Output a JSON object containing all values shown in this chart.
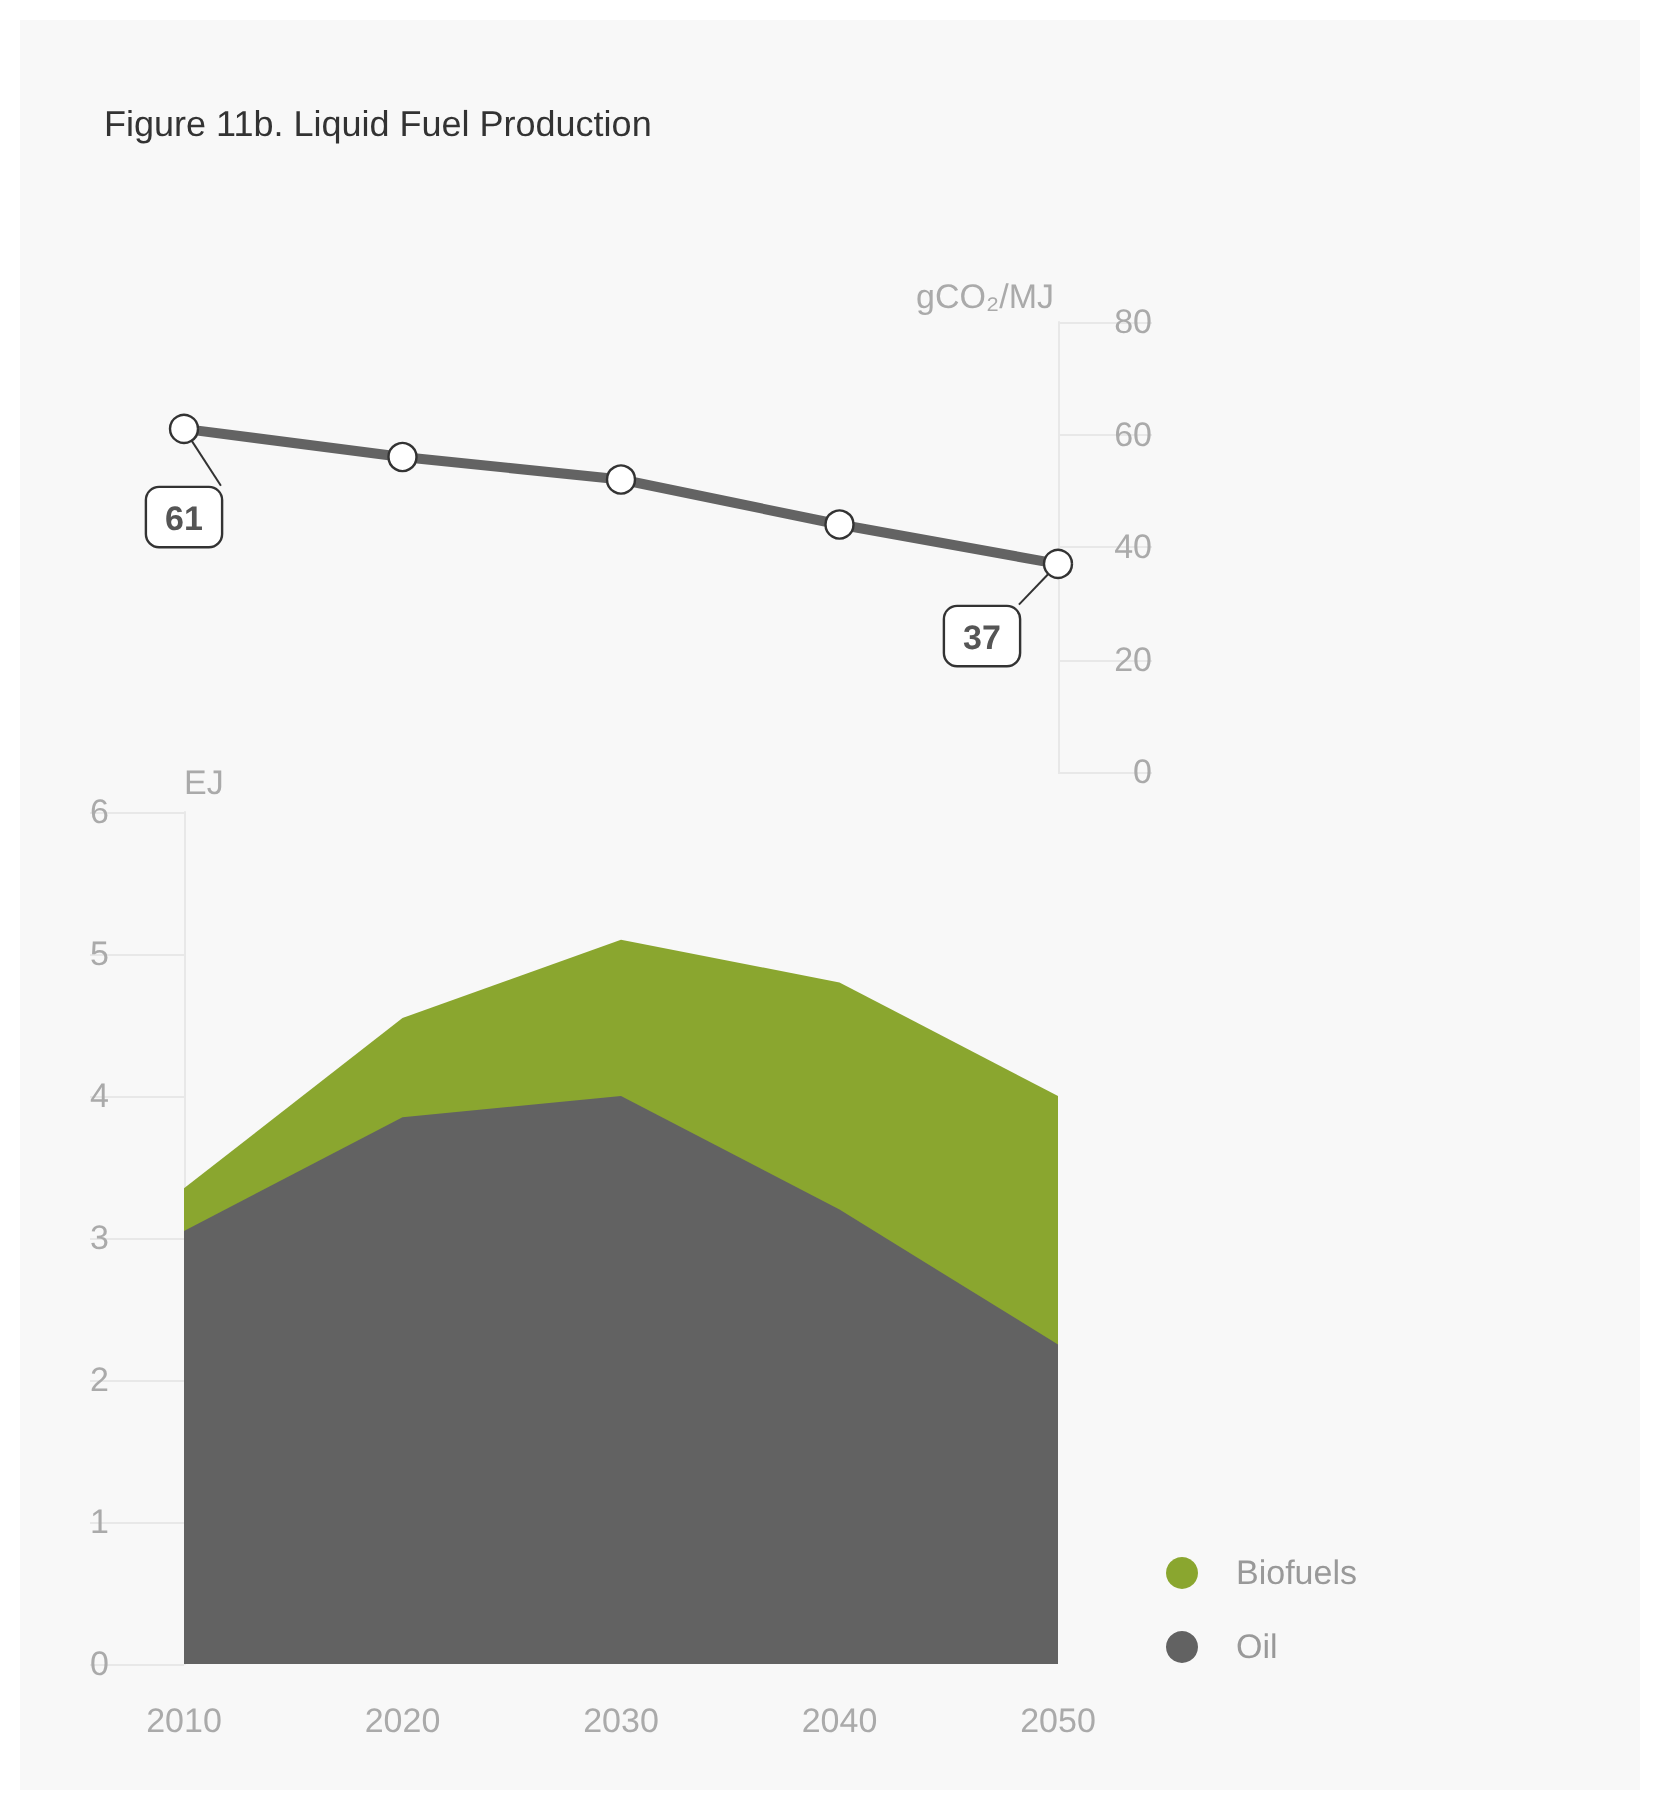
{
  "chart_data": [
    {
      "type": "line",
      "title": "Figure 11b. Liquid Fuel Production",
      "ylabel": "gCO₂/MJ",
      "x": [
        2010,
        2020,
        2030,
        2040,
        2050
      ],
      "xlim": [
        2010,
        2050
      ],
      "ylim": [
        0,
        80
      ],
      "yticks": [
        0,
        20,
        40,
        60,
        80
      ],
      "tick_labels": "y",
      "marker": "circle",
      "series": [
        {
          "color": "#636363",
          "values": [
            61,
            56,
            52,
            44,
            37
          ],
          "value_labels": [
            "61",
            null,
            null,
            null,
            "37"
          ]
        }
      ]
    },
    {
      "type": "area",
      "stacked": true,
      "ylabel": "EJ",
      "x": [
        2010,
        2020,
        2030,
        2040,
        2050
      ],
      "xlim": [
        2010,
        2050
      ],
      "xticks": [
        2010,
        2020,
        2030,
        2040,
        2050
      ],
      "ylim": [
        0,
        6
      ],
      "yticks": [
        0,
        1,
        2,
        3,
        4,
        5,
        6
      ],
      "legend": "bottom right",
      "series": [
        {
          "name": "Oil",
          "color": "#626262",
          "values": [
            3.05,
            3.85,
            4.0,
            3.2,
            2.25
          ]
        },
        {
          "name": "Biofuels",
          "color": "#8aa62f",
          "values": [
            0.3,
            0.7,
            1.1,
            1.6,
            1.75
          ]
        }
      ]
    }
  ]
}
